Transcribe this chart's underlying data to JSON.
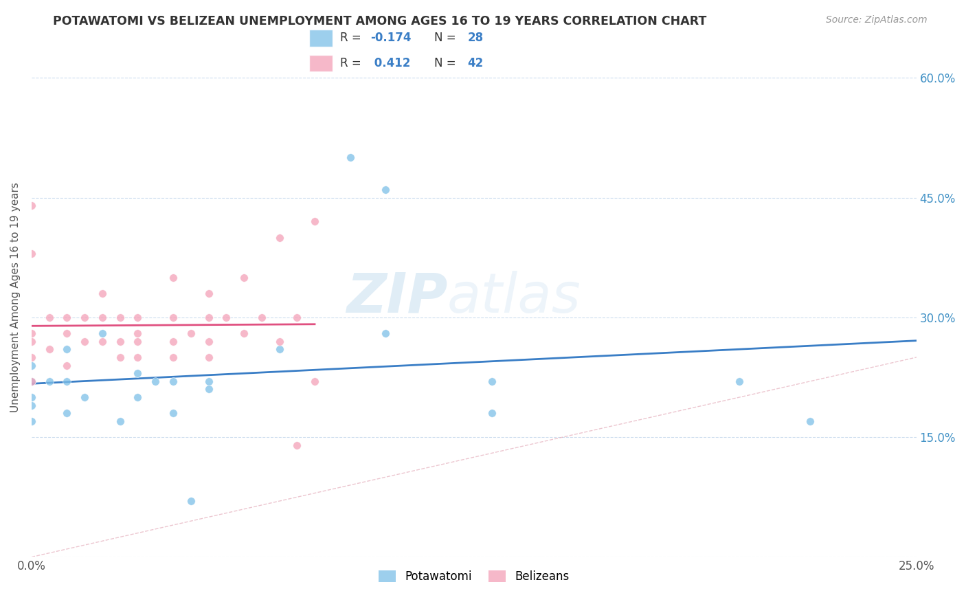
{
  "title": "POTAWATOMI VS BELIZEAN UNEMPLOYMENT AMONG AGES 16 TO 19 YEARS CORRELATION CHART",
  "source": "Source: ZipAtlas.com",
  "ylabel": "Unemployment Among Ages 16 to 19 years",
  "xlim": [
    0.0,
    0.25
  ],
  "ylim": [
    0.0,
    0.65
  ],
  "x_ticks": [
    0.0,
    0.05,
    0.1,
    0.15,
    0.2,
    0.25
  ],
  "x_tick_labels": [
    "0.0%",
    "",
    "",
    "",
    "",
    "25.0%"
  ],
  "y_ticks": [
    0.0,
    0.15,
    0.3,
    0.45,
    0.6
  ],
  "y_tick_labels_right": [
    "",
    "15.0%",
    "30.0%",
    "45.0%",
    "60.0%"
  ],
  "R_potawatomi": -0.174,
  "N_potawatomi": 28,
  "R_belizean": 0.412,
  "N_belizean": 42,
  "potawatomi_color": "#7dbfe8",
  "belizean_color": "#f4a0b8",
  "trendline_potawatomi_color": "#3a7ec6",
  "trendline_belizean_color": "#e05080",
  "watermark_zip": "ZIP",
  "watermark_atlas": "atlas",
  "potawatomi_x": [
    0.0,
    0.0,
    0.0,
    0.0,
    0.0,
    0.005,
    0.01,
    0.01,
    0.01,
    0.015,
    0.02,
    0.025,
    0.03,
    0.03,
    0.035,
    0.04,
    0.04,
    0.045,
    0.05,
    0.05,
    0.07,
    0.09,
    0.1,
    0.1,
    0.13,
    0.13,
    0.2,
    0.22
  ],
  "potawatomi_y": [
    0.2,
    0.22,
    0.19,
    0.17,
    0.24,
    0.22,
    0.26,
    0.22,
    0.18,
    0.2,
    0.28,
    0.17,
    0.23,
    0.2,
    0.22,
    0.22,
    0.18,
    0.07,
    0.22,
    0.21,
    0.26,
    0.5,
    0.46,
    0.28,
    0.22,
    0.18,
    0.22,
    0.17
  ],
  "belizean_x": [
    0.0,
    0.0,
    0.0,
    0.0,
    0.0,
    0.0,
    0.005,
    0.005,
    0.01,
    0.01,
    0.01,
    0.015,
    0.015,
    0.02,
    0.02,
    0.02,
    0.025,
    0.025,
    0.025,
    0.03,
    0.03,
    0.03,
    0.03,
    0.04,
    0.04,
    0.04,
    0.04,
    0.045,
    0.05,
    0.05,
    0.05,
    0.05,
    0.055,
    0.06,
    0.06,
    0.065,
    0.07,
    0.07,
    0.075,
    0.075,
    0.08,
    0.08
  ],
  "belizean_y": [
    0.44,
    0.38,
    0.28,
    0.27,
    0.25,
    0.22,
    0.3,
    0.26,
    0.3,
    0.28,
    0.24,
    0.3,
    0.27,
    0.33,
    0.3,
    0.27,
    0.3,
    0.27,
    0.25,
    0.3,
    0.28,
    0.27,
    0.25,
    0.35,
    0.3,
    0.27,
    0.25,
    0.28,
    0.33,
    0.3,
    0.27,
    0.25,
    0.3,
    0.35,
    0.28,
    0.3,
    0.4,
    0.27,
    0.3,
    0.14,
    0.42,
    0.22
  ]
}
